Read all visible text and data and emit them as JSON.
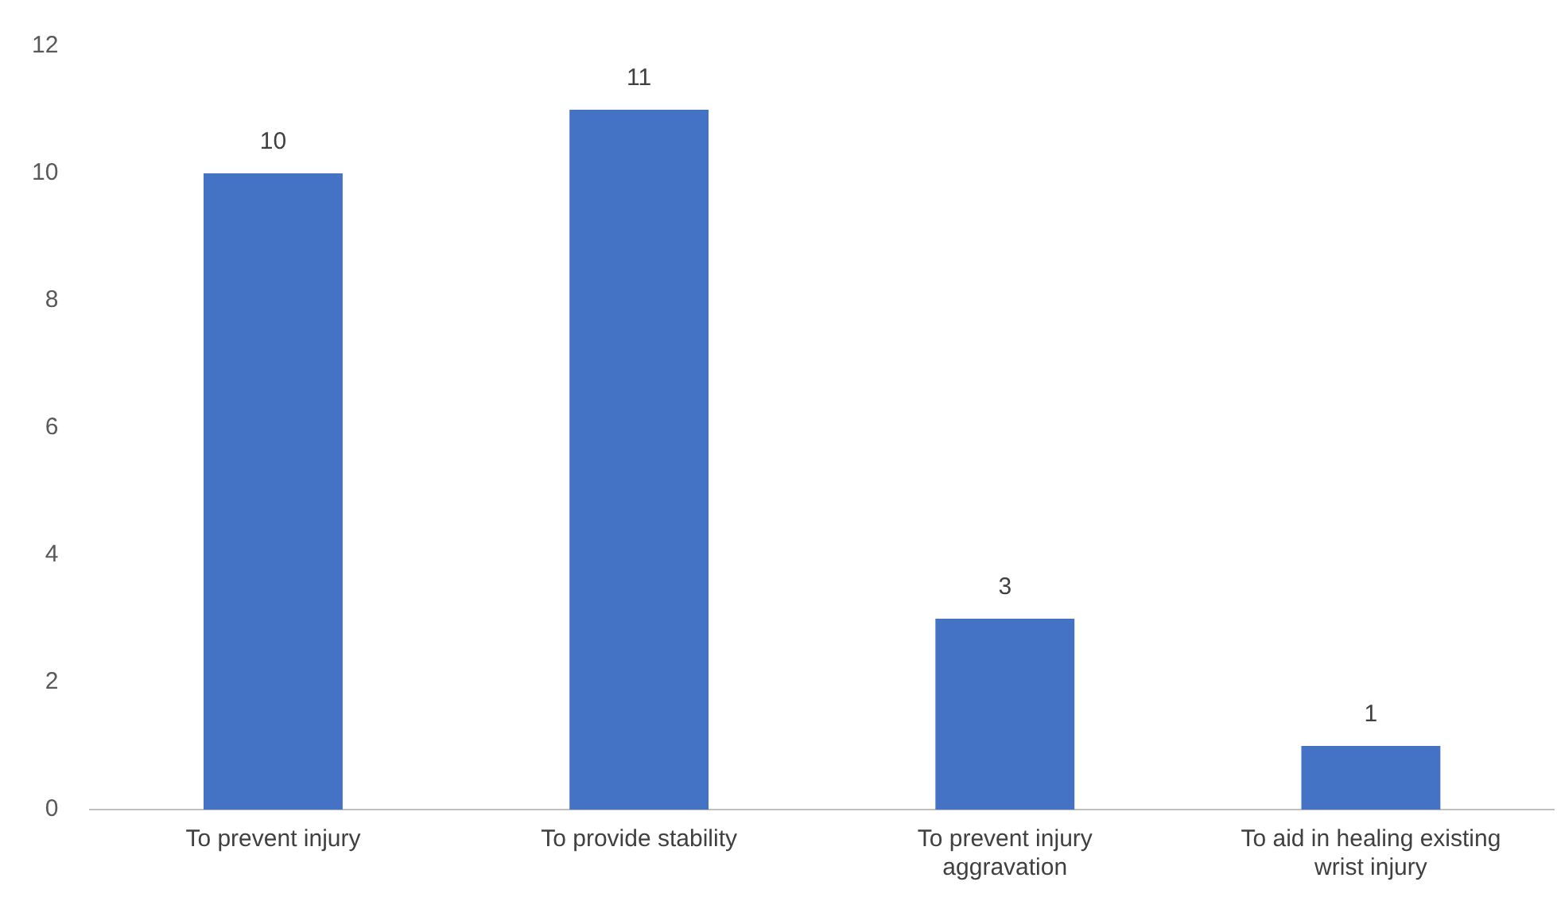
{
  "chart_data": {
    "type": "bar",
    "categories": [
      "To prevent injury",
      "To provide stability",
      "To prevent injury aggravation",
      "To aid in healing existing wrist injury"
    ],
    "values": [
      10,
      11,
      3,
      1
    ],
    "color": "#4472c4",
    "ylim": [
      0,
      12
    ],
    "yticks": [
      0,
      2,
      4,
      6,
      8,
      10,
      12
    ],
    "data_labels": true,
    "grid": false,
    "legend": false
  }
}
